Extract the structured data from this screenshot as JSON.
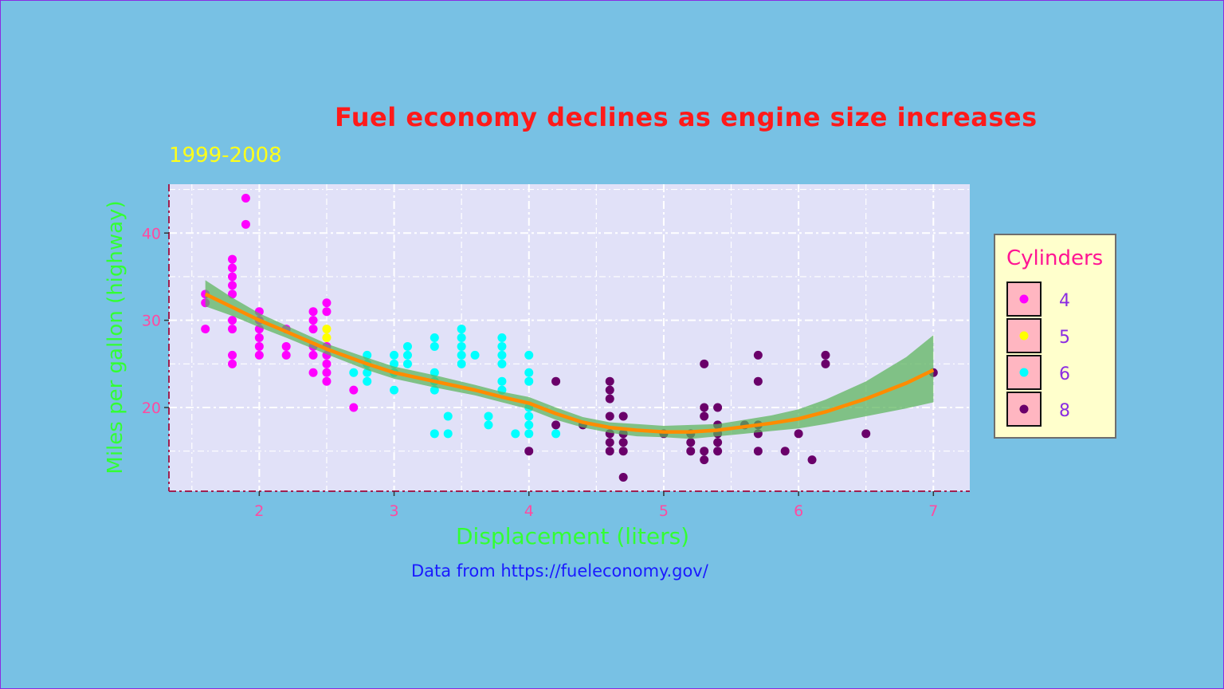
{
  "chart": {
    "title": "Fuel economy declines as engine size increases",
    "subtitle": "1999-2008",
    "caption": "Data from https://fueleconomy.gov/",
    "xlabel": "Displacement (liters)",
    "ylabel": "Miles per gallon (highway)"
  },
  "legend": {
    "title": "Cylinders",
    "items": [
      {
        "label": "4",
        "color": "#ff00ff"
      },
      {
        "label": "5",
        "color": "#ffff00"
      },
      {
        "label": "6",
        "color": "#00ffff"
      },
      {
        "label": "8",
        "color": "#6a006a"
      }
    ]
  },
  "chart_data": {
    "type": "scatter",
    "title": "Fuel economy declines as engine size increases",
    "subtitle": "1999-2008",
    "caption": "Data from https://fueleconomy.gov/",
    "xlabel": "Displacement (liters)",
    "ylabel": "Miles per gallon (highway)",
    "xlim": [
      1.33,
      7.27
    ],
    "ylim": [
      10.4,
      45.6
    ],
    "xticks": [
      2,
      3,
      4,
      5,
      6,
      7
    ],
    "yticks": [
      20,
      30,
      40
    ],
    "grid": true,
    "legend_position": "right",
    "colors": {
      "panel_background": "#e1e1f8",
      "grid": "#ffffff",
      "axis_line": "#a02050",
      "points": {
        "4": "#ff00ff",
        "5": "#ffff00",
        "6": "#00ffff",
        "8": "#6a006a"
      },
      "smooth_line": "#ff8c00",
      "smooth_band": "#5ab45a"
    },
    "series": [
      {
        "name": "4",
        "points": [
          [
            1.6,
            33
          ],
          [
            1.6,
            32
          ],
          [
            1.6,
            29
          ],
          [
            1.8,
            37
          ],
          [
            1.8,
            36
          ],
          [
            1.8,
            35
          ],
          [
            1.8,
            34
          ],
          [
            1.8,
            33
          ],
          [
            1.8,
            30
          ],
          [
            1.8,
            29
          ],
          [
            1.8,
            26
          ],
          [
            1.8,
            25
          ],
          [
            1.9,
            44
          ],
          [
            1.9,
            41
          ],
          [
            2.0,
            31
          ],
          [
            2.0,
            30
          ],
          [
            2.0,
            29
          ],
          [
            2.0,
            28
          ],
          [
            2.0,
            27
          ],
          [
            2.0,
            26
          ],
          [
            2.2,
            29
          ],
          [
            2.2,
            27
          ],
          [
            2.2,
            26
          ],
          [
            2.4,
            31
          ],
          [
            2.4,
            30
          ],
          [
            2.4,
            29
          ],
          [
            2.4,
            27
          ],
          [
            2.4,
            26
          ],
          [
            2.4,
            24
          ],
          [
            2.5,
            32
          ],
          [
            2.5,
            31
          ],
          [
            2.5,
            27
          ],
          [
            2.5,
            26
          ],
          [
            2.5,
            25
          ],
          [
            2.5,
            24
          ],
          [
            2.5,
            23
          ],
          [
            2.7,
            22
          ],
          [
            2.7,
            20
          ]
        ]
      },
      {
        "name": "5",
        "points": [
          [
            2.5,
            29
          ],
          [
            2.5,
            28
          ]
        ]
      },
      {
        "name": "6",
        "points": [
          [
            2.7,
            24
          ],
          [
            2.8,
            26
          ],
          [
            2.8,
            25
          ],
          [
            2.8,
            24
          ],
          [
            2.8,
            23
          ],
          [
            3.0,
            26
          ],
          [
            3.0,
            25
          ],
          [
            3.0,
            24
          ],
          [
            3.0,
            22
          ],
          [
            3.1,
            27
          ],
          [
            3.1,
            26
          ],
          [
            3.1,
            25
          ],
          [
            3.3,
            28
          ],
          [
            3.3,
            27
          ],
          [
            3.3,
            24
          ],
          [
            3.3,
            23
          ],
          [
            3.3,
            22
          ],
          [
            3.3,
            17
          ],
          [
            3.4,
            19
          ],
          [
            3.4,
            17
          ],
          [
            3.5,
            29
          ],
          [
            3.5,
            28
          ],
          [
            3.5,
            27
          ],
          [
            3.5,
            26
          ],
          [
            3.5,
            25
          ],
          [
            3.6,
            26
          ],
          [
            3.7,
            19
          ],
          [
            3.7,
            18
          ],
          [
            3.8,
            28
          ],
          [
            3.8,
            27
          ],
          [
            3.8,
            26
          ],
          [
            3.8,
            25
          ],
          [
            3.8,
            23
          ],
          [
            3.8,
            22
          ],
          [
            3.9,
            17
          ],
          [
            4.0,
            26
          ],
          [
            4.0,
            24
          ],
          [
            4.0,
            23
          ],
          [
            4.0,
            20
          ],
          [
            4.0,
            19
          ],
          [
            4.0,
            18
          ],
          [
            4.0,
            17
          ],
          [
            4.2,
            17
          ]
        ]
      },
      {
        "name": "8",
        "points": [
          [
            4.0,
            15
          ],
          [
            4.2,
            23
          ],
          [
            4.2,
            18
          ],
          [
            4.4,
            18
          ],
          [
            4.6,
            23
          ],
          [
            4.6,
            22
          ],
          [
            4.6,
            21
          ],
          [
            4.6,
            19
          ],
          [
            4.6,
            17
          ],
          [
            4.6,
            16
          ],
          [
            4.6,
            15
          ],
          [
            4.7,
            19
          ],
          [
            4.7,
            17
          ],
          [
            4.7,
            16
          ],
          [
            4.7,
            15
          ],
          [
            4.7,
            12
          ],
          [
            5.0,
            17
          ],
          [
            5.2,
            17
          ],
          [
            5.2,
            16
          ],
          [
            5.2,
            15
          ],
          [
            5.3,
            25
          ],
          [
            5.3,
            20
          ],
          [
            5.3,
            19
          ],
          [
            5.3,
            15
          ],
          [
            5.3,
            14
          ],
          [
            5.4,
            20
          ],
          [
            5.4,
            18
          ],
          [
            5.4,
            17
          ],
          [
            5.4,
            16
          ],
          [
            5.4,
            15
          ],
          [
            5.6,
            18
          ],
          [
            5.7,
            26
          ],
          [
            5.7,
            23
          ],
          [
            5.7,
            18
          ],
          [
            5.7,
            17
          ],
          [
            5.7,
            15
          ],
          [
            5.9,
            15
          ],
          [
            6.0,
            17
          ],
          [
            6.1,
            14
          ],
          [
            6.2,
            26
          ],
          [
            6.2,
            25
          ],
          [
            6.5,
            17
          ],
          [
            7.0,
            24
          ]
        ]
      }
    ],
    "smooth": {
      "x": [
        1.6,
        1.8,
        2.0,
        2.2,
        2.5,
        2.8,
        3.0,
        3.3,
        3.6,
        3.8,
        4.0,
        4.2,
        4.4,
        4.6,
        4.8,
        5.0,
        5.2,
        5.4,
        5.6,
        5.8,
        6.0,
        6.2,
        6.5,
        6.8,
        7.0
      ],
      "y": [
        33.0,
        31.5,
        30.0,
        28.7,
        26.7,
        25.0,
        24.0,
        23.0,
        22.0,
        21.2,
        20.5,
        19.3,
        18.3,
        17.7,
        17.4,
        17.2,
        17.2,
        17.4,
        17.8,
        18.2,
        18.7,
        19.5,
        21.0,
        22.8,
        24.3
      ],
      "lower": [
        31.6,
        30.5,
        29.2,
        28.0,
        26.1,
        24.3,
        23.3,
        22.3,
        21.4,
        20.6,
        19.8,
        18.6,
        17.7,
        17.1,
        16.7,
        16.6,
        16.4,
        16.7,
        17.0,
        17.3,
        17.6,
        18.1,
        19.0,
        19.9,
        20.6
      ],
      "upper": [
        34.6,
        32.6,
        30.8,
        29.4,
        27.3,
        25.7,
        24.7,
        23.7,
        22.6,
        21.8,
        21.2,
        20.0,
        18.9,
        18.3,
        18.1,
        17.9,
        18.0,
        18.1,
        18.6,
        19.1,
        19.8,
        20.9,
        23.0,
        25.8,
        28.3
      ]
    }
  }
}
